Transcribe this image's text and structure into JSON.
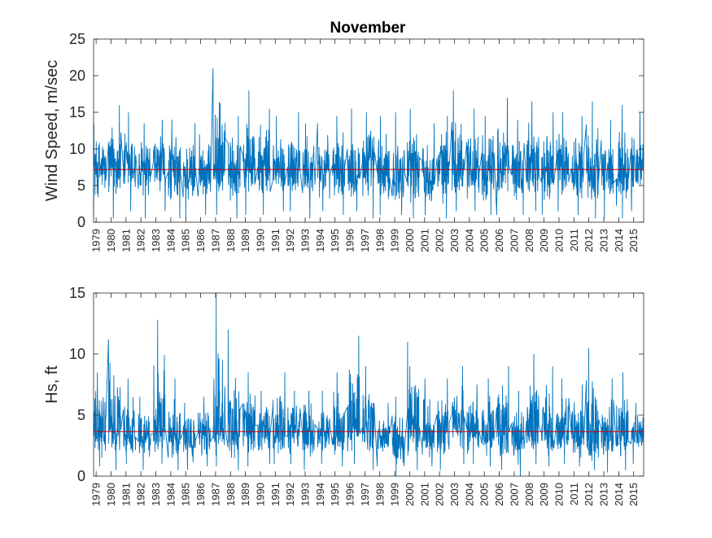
{
  "figure": {
    "title": "November"
  },
  "colors": {
    "series": "#0072bd",
    "mean_line": "#d00000",
    "axes": "#262626",
    "background": "#ffffff"
  },
  "chart_data": [
    {
      "type": "line",
      "title": "November",
      "xlabel": "",
      "ylabel": "Wind Speed, m/sec",
      "ylim": [
        0,
        25
      ],
      "yticks": [
        0,
        5,
        10,
        15,
        20,
        25
      ],
      "xlim": [
        1978.83,
        2015.67
      ],
      "xticks": [
        "1979",
        "1980",
        "1981",
        "1982",
        "1983",
        "1984",
        "1985",
        "1986",
        "1987",
        "1988",
        "1989",
        "1990",
        "1991",
        "1992",
        "1993",
        "1994",
        "1995",
        "1996",
        "1997",
        "1998",
        "1999",
        "2000",
        "2001",
        "2002",
        "2003",
        "2004",
        "2005",
        "2006",
        "2007",
        "2008",
        "2009",
        "2010",
        "2011",
        "2012",
        "2013",
        "2014",
        "2015"
      ],
      "grid": false,
      "mean": 7.2,
      "series": [
        {
          "x": [
            1979,
            1980,
            1981,
            1982,
            1983,
            1984,
            1985,
            1986,
            1987,
            1988,
            1989,
            1990,
            1991,
            1992,
            1993,
            1994,
            1995,
            1996,
            1997,
            1998,
            1999,
            2000,
            2001,
            2002,
            2003,
            2004,
            2005,
            2006,
            2007,
            2008,
            2009,
            2010,
            2011,
            2012,
            2013,
            2014,
            2015
          ],
          "min": [
            1.0,
            0.5,
            1.5,
            0.5,
            1.5,
            0.5,
            0.5,
            1.0,
            1.0,
            0.5,
            1.0,
            1.0,
            1.5,
            1.5,
            0.5,
            1.5,
            1.0,
            1.5,
            0.5,
            1.0,
            1.0,
            0.5,
            1.0,
            0.5,
            1.5,
            1.5,
            1.0,
            1.0,
            1.0,
            1.5,
            1.0,
            1.5,
            1.0,
            0.5,
            0.5,
            0.5,
            1.5
          ],
          "max": [
            13.5,
            16.0,
            15.0,
            13.5,
            14.0,
            14.0,
            13.5,
            12.0,
            21.0,
            14.5,
            18.0,
            15.5,
            14.5,
            15.0,
            13.5,
            13.5,
            14.5,
            15.5,
            15.0,
            14.5,
            15.0,
            15.5,
            13.5,
            14.5,
            18.0,
            15.5,
            14.5,
            17.0,
            14.0,
            16.5,
            15.0,
            15.0,
            14.5,
            16.5,
            14.0,
            16.0,
            15.0
          ],
          "median": [
            7.5,
            8.0,
            7.5,
            7.0,
            7.5,
            7.0,
            6.5,
            7.0,
            7.5,
            7.0,
            8.0,
            7.5,
            7.0,
            7.5,
            7.0,
            7.5,
            7.0,
            7.5,
            8.0,
            6.5,
            6.0,
            8.0,
            6.5,
            7.5,
            8.0,
            7.5,
            7.0,
            7.5,
            7.0,
            7.5,
            7.0,
            7.5,
            7.0,
            6.5,
            7.0,
            7.0,
            7.5
          ]
        }
      ]
    },
    {
      "type": "line",
      "title": "",
      "xlabel": "",
      "ylabel": "Hs, ft",
      "ylim": [
        0,
        15
      ],
      "yticks": [
        0,
        5,
        10,
        15
      ],
      "xlim": [
        1978.83,
        2015.67
      ],
      "xticks": [
        "1979",
        "1980",
        "1981",
        "1982",
        "1983",
        "1984",
        "1985",
        "1986",
        "1987",
        "1988",
        "1989",
        "1990",
        "1991",
        "1992",
        "1993",
        "1994",
        "1995",
        "1996",
        "1997",
        "1998",
        "1999",
        "2000",
        "2001",
        "2002",
        "2003",
        "2004",
        "2005",
        "2006",
        "2007",
        "2008",
        "2009",
        "2010",
        "2011",
        "2012",
        "2013",
        "2014",
        "2015"
      ],
      "grid": false,
      "mean": 3.65,
      "series": [
        {
          "x": [
            1979,
            1980,
            1981,
            1982,
            1983,
            1984,
            1985,
            1986,
            1987,
            1988,
            1989,
            1990,
            1991,
            1992,
            1993,
            1994,
            1995,
            1996,
            1997,
            1998,
            1999,
            2000,
            2001,
            2002,
            2003,
            2004,
            2005,
            2006,
            2007,
            2008,
            2009,
            2010,
            2011,
            2012,
            2013,
            2014,
            2015
          ],
          "min": [
            0.8,
            0.5,
            1.0,
            0.5,
            1.0,
            0.5,
            0.5,
            0.8,
            0.8,
            0.5,
            0.8,
            1.0,
            1.0,
            1.0,
            0.5,
            1.0,
            0.8,
            1.0,
            0.5,
            0.8,
            0.0,
            0.5,
            0.8,
            0.5,
            1.0,
            1.0,
            0.8,
            0.5,
            0.0,
            1.0,
            0.8,
            1.0,
            0.8,
            0.5,
            0.3,
            0.5,
            1.0
          ],
          "max": [
            8.5,
            11.2,
            8.0,
            6.5,
            12.8,
            8.0,
            6.0,
            6.5,
            15.0,
            12.0,
            8.5,
            7.0,
            8.5,
            7.0,
            7.0,
            7.0,
            8.5,
            11.5,
            9.0,
            6.0,
            6.5,
            11.0,
            8.0,
            8.0,
            9.0,
            7.5,
            8.0,
            9.0,
            7.0,
            10.0,
            9.0,
            8.0,
            7.5,
            10.5,
            8.0,
            8.5,
            6.0
          ],
          "median": [
            3.5,
            4.0,
            3.5,
            3.5,
            4.0,
            3.5,
            3.0,
            3.5,
            4.0,
            3.5,
            4.0,
            3.5,
            3.5,
            4.0,
            3.5,
            3.5,
            3.5,
            4.0,
            4.0,
            3.0,
            2.5,
            4.0,
            3.0,
            3.5,
            4.0,
            3.5,
            3.5,
            3.5,
            3.0,
            3.5,
            3.5,
            3.5,
            3.5,
            3.0,
            3.0,
            3.5,
            3.5
          ]
        }
      ]
    }
  ]
}
